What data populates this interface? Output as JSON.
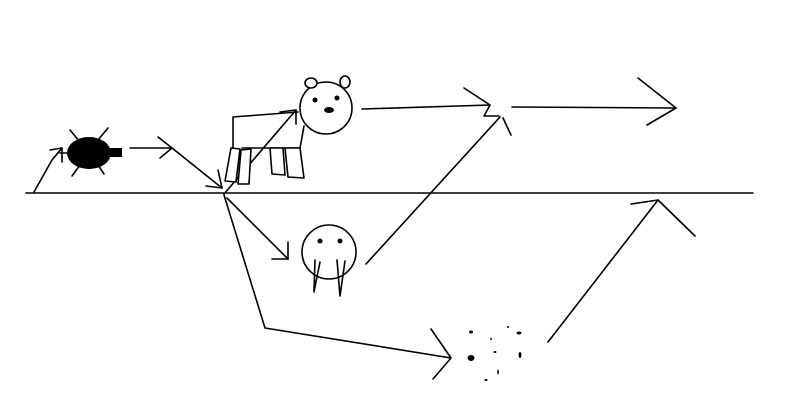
{
  "diagram": {
    "figures": [
      {
        "id": "beetle",
        "icon": "beetle-icon",
        "filled": true
      },
      {
        "id": "polar-bear",
        "icon": "polar-bear-icon",
        "filled": false
      },
      {
        "id": "walrus",
        "icon": "walrus-icon",
        "filled": false
      },
      {
        "id": "scattered-dots",
        "icon": "dots-icon",
        "filled": true
      }
    ],
    "colors": {
      "background": "#ffffff",
      "ink": "#000000"
    }
  }
}
